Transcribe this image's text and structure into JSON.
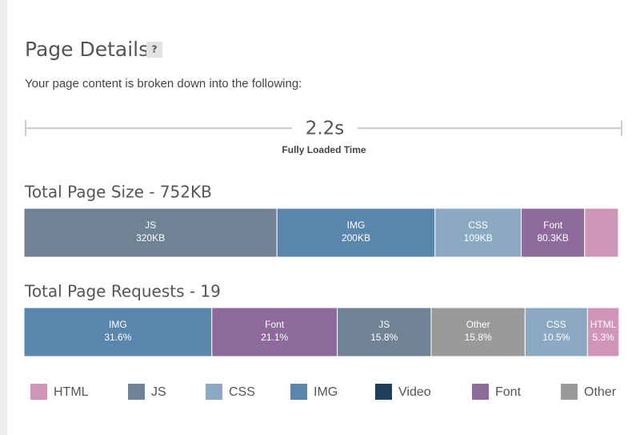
{
  "header": {
    "title": "Page Details",
    "help": "?",
    "description": "Your page content is broken down into the following:"
  },
  "timeline": {
    "value_label": "2.2s",
    "label": "Fully Loaded Time"
  },
  "chart_data": [
    {
      "type": "stacked-bar",
      "title": "Total Page Size - 752KB",
      "xlim": [
        0,
        752
      ],
      "series": [
        {
          "name": "JS",
          "color": "#6f8394",
          "values": [
            320
          ],
          "value_labels": [
            "320KB"
          ]
        },
        {
          "name": "IMG",
          "color": "#5a86ad",
          "values": [
            200
          ],
          "value_labels": [
            "200KB"
          ]
        },
        {
          "name": "CSS",
          "color": "#8ba9c3",
          "values": [
            109
          ],
          "value_labels": [
            "109KB"
          ]
        },
        {
          "name": "Font",
          "color": "#8e6a9d",
          "values": [
            80.3
          ],
          "value_labels": [
            "80.3KB"
          ]
        },
        {
          "name": "HTML",
          "color": "#d095b9",
          "values": [
            42.7
          ]
        }
      ]
    },
    {
      "type": "stacked-bar",
      "title": "Total Page Requests - 19",
      "xlim": [
        0,
        100
      ],
      "series": [
        {
          "name": "IMG",
          "color": "#5a86ad",
          "values": [
            31.6
          ],
          "value_labels": [
            "31.6%"
          ]
        },
        {
          "name": "Font",
          "color": "#8e6a9d",
          "values": [
            21.1
          ],
          "value_labels": [
            "21.1%"
          ]
        },
        {
          "name": "JS",
          "color": "#6f8394",
          "values": [
            15.8
          ],
          "value_labels": [
            "15.8%"
          ]
        },
        {
          "name": "Other",
          "color": "#9a9a9a",
          "values": [
            15.8
          ],
          "value_labels": [
            "15.8%"
          ]
        },
        {
          "name": "CSS",
          "color": "#8ba9c3",
          "values": [
            10.5
          ],
          "value_labels": [
            "10.5%"
          ]
        },
        {
          "name": "HTML",
          "color": "#d095b9",
          "values": [
            5.3
          ],
          "value_labels": [
            "5.3%"
          ]
        }
      ]
    }
  ],
  "legend": [
    {
      "name": "HTML",
      "color": "#d095b9"
    },
    {
      "name": "JS",
      "color": "#6f8394"
    },
    {
      "name": "CSS",
      "color": "#8ba9c3"
    },
    {
      "name": "IMG",
      "color": "#5a86ad"
    },
    {
      "name": "Video",
      "color": "#1e3d5f"
    },
    {
      "name": "Font",
      "color": "#8e6a9d"
    },
    {
      "name": "Other",
      "color": "#9a9a9a"
    }
  ]
}
